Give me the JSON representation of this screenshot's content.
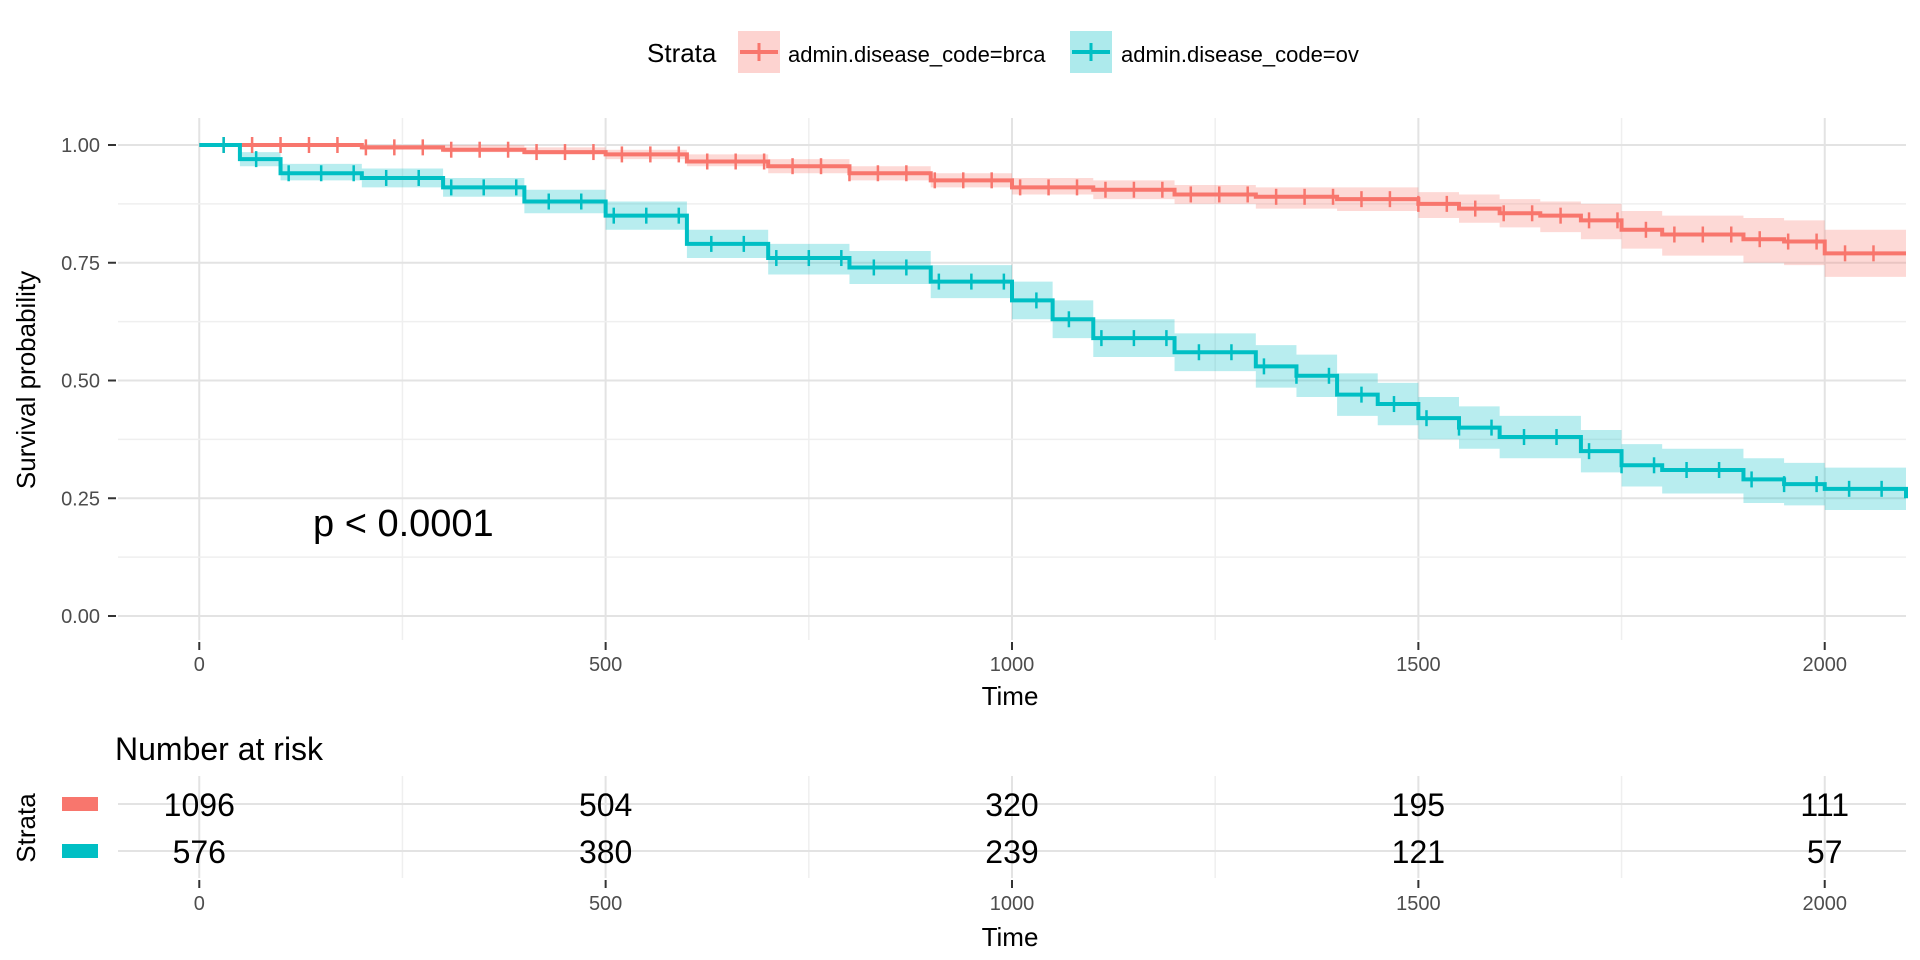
{
  "chart_data": {
    "type": "line",
    "subtype": "kaplan-meier",
    "xlabel": "Time",
    "ylabel": "Survival probability",
    "xlim": [
      -100,
      2100
    ],
    "ylim": [
      0,
      1
    ],
    "xticks": [
      0,
      500,
      1000,
      1500,
      2000
    ],
    "yticks": [
      0,
      0.25,
      0.5,
      0.75,
      1.0
    ],
    "ytick_labels": [
      "0.00",
      "0.25",
      "0.50",
      "0.75",
      "1.00"
    ],
    "grid": true,
    "legend": {
      "title": "Strata",
      "position": "top",
      "entries": [
        "admin.disease_code=brca",
        "admin.disease_code=ov"
      ]
    },
    "annotation": "p < 0.0001",
    "series": [
      {
        "name": "admin.disease_code=brca",
        "color": "#F8766D",
        "x": [
          0,
          100,
          200,
          300,
          400,
          500,
          600,
          700,
          800,
          900,
          1000,
          1100,
          1200,
          1300,
          1400,
          1500,
          1550,
          1600,
          1650,
          1700,
          1750,
          1800,
          1900,
          1950,
          2000,
          2100
        ],
        "y": [
          1.0,
          1.0,
          0.995,
          0.99,
          0.985,
          0.98,
          0.965,
          0.955,
          0.94,
          0.925,
          0.91,
          0.905,
          0.895,
          0.89,
          0.885,
          0.875,
          0.865,
          0.855,
          0.85,
          0.84,
          0.82,
          0.81,
          0.8,
          0.795,
          0.77,
          0.77
        ],
        "lower": [
          1.0,
          1.0,
          0.99,
          0.985,
          0.98,
          0.97,
          0.955,
          0.94,
          0.925,
          0.91,
          0.895,
          0.885,
          0.875,
          0.865,
          0.86,
          0.845,
          0.835,
          0.825,
          0.815,
          0.8,
          0.78,
          0.765,
          0.75,
          0.745,
          0.72,
          0.71
        ],
        "upper": [
          1.0,
          1.0,
          1.0,
          1.0,
          0.995,
          0.99,
          0.98,
          0.97,
          0.955,
          0.94,
          0.93,
          0.925,
          0.915,
          0.91,
          0.91,
          0.9,
          0.895,
          0.885,
          0.88,
          0.875,
          0.86,
          0.85,
          0.845,
          0.84,
          0.82,
          0.83
        ]
      },
      {
        "name": "admin.disease_code=ov",
        "color": "#00BFC4",
        "x": [
          0,
          50,
          100,
          200,
          300,
          400,
          500,
          600,
          700,
          800,
          900,
          1000,
          1050,
          1100,
          1200,
          1300,
          1350,
          1400,
          1450,
          1500,
          1550,
          1600,
          1700,
          1750,
          1800,
          1900,
          1950,
          2000,
          2100
        ],
        "y": [
          1.0,
          0.97,
          0.94,
          0.93,
          0.91,
          0.88,
          0.85,
          0.79,
          0.76,
          0.74,
          0.71,
          0.67,
          0.63,
          0.59,
          0.56,
          0.53,
          0.51,
          0.47,
          0.45,
          0.42,
          0.4,
          0.38,
          0.35,
          0.32,
          0.31,
          0.29,
          0.28,
          0.27,
          0.25
        ],
        "lower": [
          1.0,
          0.955,
          0.925,
          0.91,
          0.89,
          0.855,
          0.82,
          0.76,
          0.725,
          0.705,
          0.675,
          0.63,
          0.59,
          0.55,
          0.52,
          0.485,
          0.465,
          0.425,
          0.405,
          0.375,
          0.355,
          0.335,
          0.305,
          0.275,
          0.26,
          0.24,
          0.235,
          0.225,
          0.205
        ],
        "upper": [
          1.0,
          0.985,
          0.96,
          0.95,
          0.93,
          0.905,
          0.88,
          0.82,
          0.79,
          0.775,
          0.745,
          0.71,
          0.67,
          0.63,
          0.6,
          0.575,
          0.555,
          0.515,
          0.495,
          0.465,
          0.445,
          0.425,
          0.395,
          0.365,
          0.355,
          0.335,
          0.325,
          0.315,
          0.3
        ]
      }
    ],
    "risk_table": {
      "title": "Number at risk",
      "ylabel": "Strata",
      "xlabel": "Time",
      "times": [
        0,
        500,
        1000,
        1500,
        2000
      ],
      "rows": [
        {
          "name": "admin.disease_code=brca",
          "color": "#F8766D",
          "values": [
            1096,
            504,
            320,
            195,
            111
          ]
        },
        {
          "name": "admin.disease_code=ov",
          "color": "#00BFC4",
          "values": [
            576,
            380,
            239,
            121,
            57
          ]
        }
      ]
    }
  }
}
